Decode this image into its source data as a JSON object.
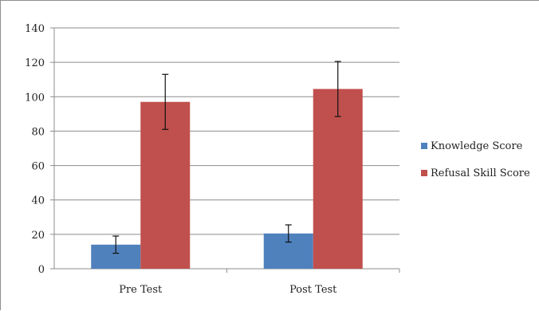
{
  "chart_data": {
    "type": "bar",
    "categories": [
      "Pre Test",
      "Post Test"
    ],
    "series": [
      {
        "name": "Knowledge Score",
        "values": [
          14,
          20.5
        ],
        "error": [
          5,
          5
        ],
        "color": "#4f81bd"
      },
      {
        "name": "Refusal Skill Score",
        "values": [
          97,
          104.5
        ],
        "error": [
          16,
          16
        ],
        "color": "#c0504d"
      }
    ],
    "ylim": [
      0,
      140
    ],
    "yticks": [
      "0",
      "20",
      "40",
      "60",
      "80",
      "100",
      "120",
      "140"
    ],
    "grid": true,
    "legend_position": "right"
  }
}
